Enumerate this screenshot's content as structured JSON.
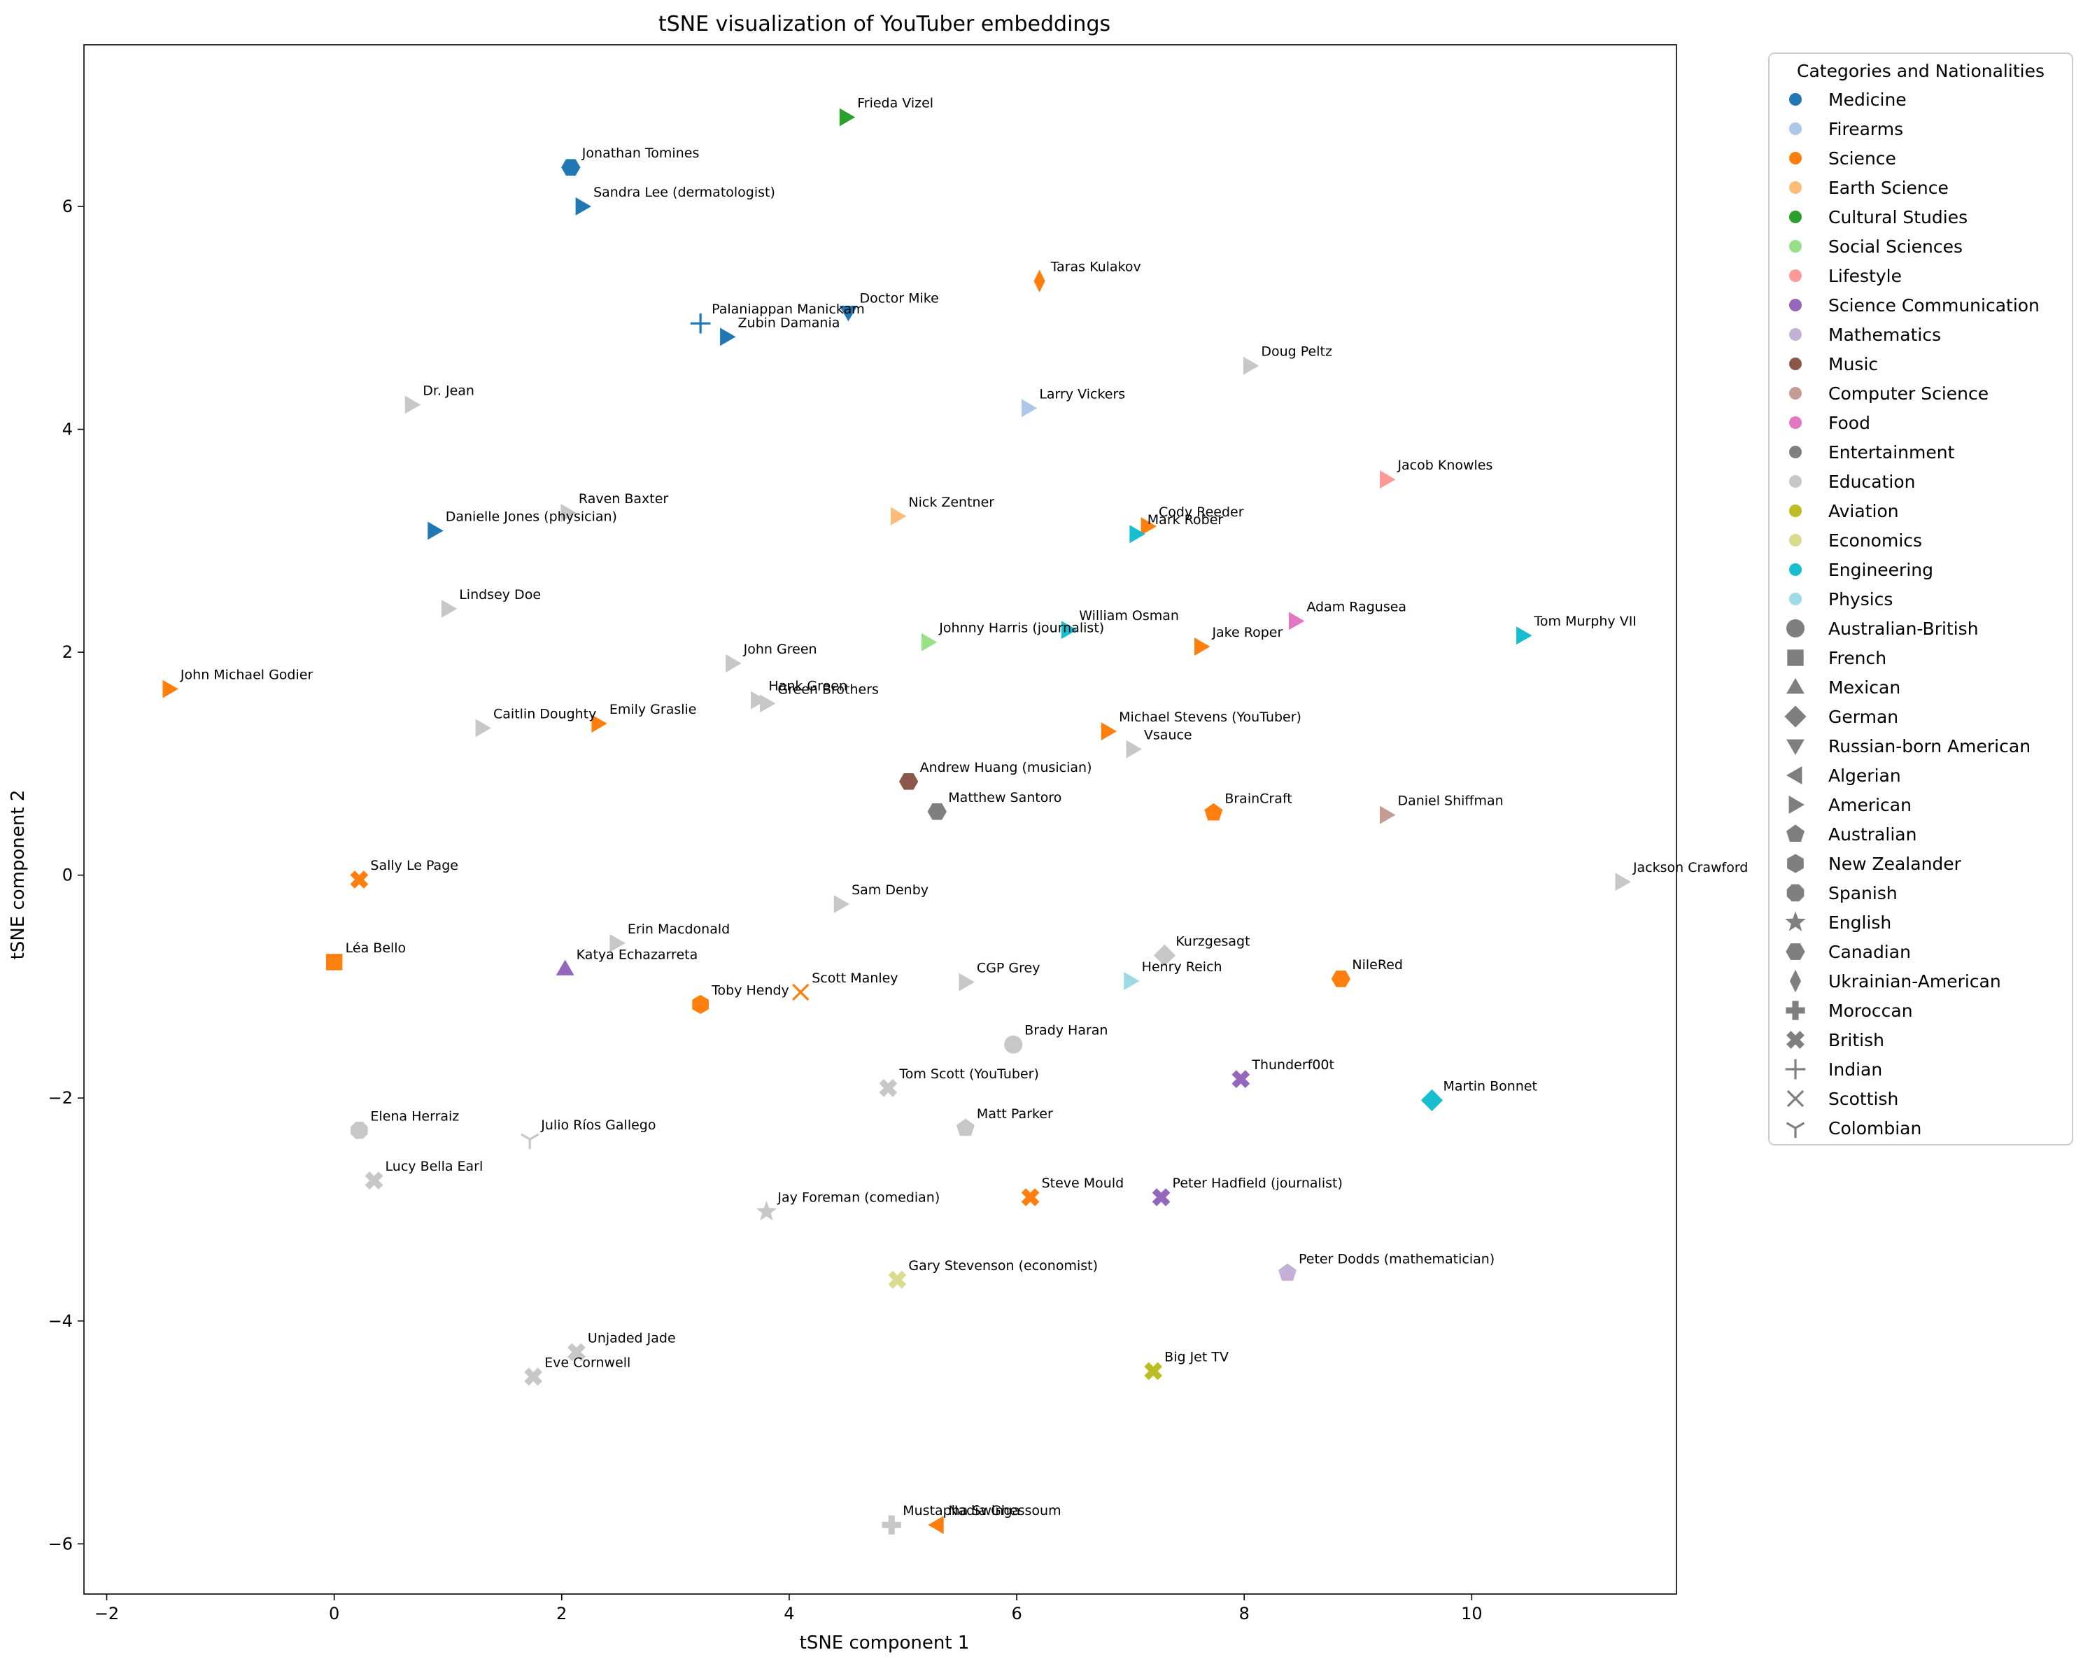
{
  "chart_data": {
    "type": "scatter",
    "title": "tSNE visualization of YouTuber embeddings",
    "xlabel": "tSNE component 1",
    "ylabel": "tSNE component 2",
    "xlim": [
      -2.2,
      11.8
    ],
    "ylim": [
      -6.45,
      7.45
    ],
    "xticks": [
      -2,
      0,
      2,
      4,
      6,
      8,
      10
    ],
    "yticks": [
      -6,
      -4,
      -2,
      0,
      2,
      4,
      6
    ],
    "xtick_labels": [
      "−2",
      "0",
      "2",
      "4",
      "6",
      "8",
      "10"
    ],
    "ytick_labels": [
      "−6",
      "−4",
      "−2",
      "0",
      "2",
      "4",
      "6"
    ],
    "grid": false,
    "legend_position": "outside-right",
    "legend_title": "Categories and Nationalities",
    "categories": [
      {
        "name": "Medicine",
        "color": "#1f77b4"
      },
      {
        "name": "Firearms",
        "color": "#aec7e8"
      },
      {
        "name": "Science",
        "color": "#ff7f0e"
      },
      {
        "name": "Earth Science",
        "color": "#ffbb78"
      },
      {
        "name": "Cultural Studies",
        "color": "#2ca02c"
      },
      {
        "name": "Social Sciences",
        "color": "#98df8a"
      },
      {
        "name": "Lifestyle",
        "color": "#ff9896"
      },
      {
        "name": "Science Communication",
        "color": "#9467bd"
      },
      {
        "name": "Mathematics",
        "color": "#c5b0d5"
      },
      {
        "name": "Music",
        "color": "#8c564b"
      },
      {
        "name": "Computer Science",
        "color": "#c49c94"
      },
      {
        "name": "Food",
        "color": "#e377c2"
      },
      {
        "name": "Entertainment",
        "color": "#7f7f7f"
      },
      {
        "name": "Education",
        "color": "#c7c7c7"
      },
      {
        "name": "Aviation",
        "color": "#bcbd22"
      },
      {
        "name": "Economics",
        "color": "#dbdb8d"
      },
      {
        "name": "Engineering",
        "color": "#17becf"
      },
      {
        "name": "Physics",
        "color": "#9edae5"
      }
    ],
    "nationalities": [
      {
        "name": "Australian-British",
        "marker": "circle"
      },
      {
        "name": "French",
        "marker": "square"
      },
      {
        "name": "Mexican",
        "marker": "triangle-up"
      },
      {
        "name": "German",
        "marker": "diamond"
      },
      {
        "name": "Russian-born American",
        "marker": "triangle-down"
      },
      {
        "name": "Algerian",
        "marker": "triangle-left"
      },
      {
        "name": "American",
        "marker": "triangle-right"
      },
      {
        "name": "Australian",
        "marker": "pentagon"
      },
      {
        "name": "New Zealander",
        "marker": "hexagon"
      },
      {
        "name": "Spanish",
        "marker": "octagon"
      },
      {
        "name": "English",
        "marker": "star"
      },
      {
        "name": "Canadian",
        "marker": "hexagon2"
      },
      {
        "name": "Ukrainian-American",
        "marker": "thin-diamond"
      },
      {
        "name": "Moroccan",
        "marker": "plus-filled"
      },
      {
        "name": "British",
        "marker": "x-filled"
      },
      {
        "name": "Indian",
        "marker": "plus"
      },
      {
        "name": "Scottish",
        "marker": "x"
      },
      {
        "name": "Colombian",
        "marker": "tri-down"
      }
    ],
    "points": [
      {
        "label": "Frieda Vizel",
        "x": 4.5,
        "y": 6.8,
        "category": "Cultural Studies",
        "nationality": "American"
      },
      {
        "label": "Jonathan Tomines",
        "x": 2.08,
        "y": 6.35,
        "category": "Medicine",
        "nationality": "Canadian"
      },
      {
        "label": "Sandra Lee (dermatologist)",
        "x": 2.18,
        "y": 6.0,
        "category": "Medicine",
        "nationality": "American"
      },
      {
        "label": "Taras Kulakov",
        "x": 6.2,
        "y": 5.33,
        "category": "Science",
        "nationality": "Ukrainian-American"
      },
      {
        "label": "Doctor Mike",
        "x": 4.52,
        "y": 5.05,
        "category": "Medicine",
        "nationality": "Russian-born American"
      },
      {
        "label": "Palaniappan Manickam",
        "x": 3.22,
        "y": 4.95,
        "category": "Medicine",
        "nationality": "Indian"
      },
      {
        "label": "Zubin Damania",
        "x": 3.45,
        "y": 4.83,
        "category": "Medicine",
        "nationality": "American"
      },
      {
        "label": "Doug Peltz",
        "x": 8.05,
        "y": 4.57,
        "category": "Education",
        "nationality": "American"
      },
      {
        "label": "Dr. Jean",
        "x": 0.68,
        "y": 4.22,
        "category": "Education",
        "nationality": "American"
      },
      {
        "label": "Larry Vickers",
        "x": 6.1,
        "y": 4.19,
        "category": "Firearms",
        "nationality": "American"
      },
      {
        "label": "Jacob Knowles",
        "x": 9.25,
        "y": 3.55,
        "category": "Lifestyle",
        "nationality": "American"
      },
      {
        "label": "Raven Baxter",
        "x": 2.05,
        "y": 3.25,
        "category": "Education",
        "nationality": "American"
      },
      {
        "label": "Nick Zentner",
        "x": 4.95,
        "y": 3.22,
        "category": "Earth Science",
        "nationality": "American"
      },
      {
        "label": "Cody Reeder",
        "x": 7.15,
        "y": 3.13,
        "category": "Science",
        "nationality": "American"
      },
      {
        "label": "Danielle Jones (physician)",
        "x": 0.88,
        "y": 3.09,
        "category": "Medicine",
        "nationality": "American"
      },
      {
        "label": "Mark Rober",
        "x": 7.05,
        "y": 3.06,
        "category": "Engineering",
        "nationality": "American"
      },
      {
        "label": "Lindsey Doe",
        "x": 1.0,
        "y": 2.39,
        "category": "Education",
        "nationality": "American"
      },
      {
        "label": "Adam Ragusea",
        "x": 8.45,
        "y": 2.28,
        "category": "Food",
        "nationality": "American"
      },
      {
        "label": "William Osman",
        "x": 6.45,
        "y": 2.2,
        "category": "Engineering",
        "nationality": "American"
      },
      {
        "label": "Tom Murphy VII",
        "x": 10.45,
        "y": 2.15,
        "category": "Engineering",
        "nationality": "American"
      },
      {
        "label": "Johnny Harris (journalist)",
        "x": 5.22,
        "y": 2.09,
        "category": "Social Sciences",
        "nationality": "American"
      },
      {
        "label": "Jake Roper",
        "x": 7.62,
        "y": 2.05,
        "category": "Science",
        "nationality": "American"
      },
      {
        "label": "John Green",
        "x": 3.5,
        "y": 1.9,
        "category": "Education",
        "nationality": "American"
      },
      {
        "label": "John Michael Godier",
        "x": -1.45,
        "y": 1.67,
        "category": "Science",
        "nationality": "American"
      },
      {
        "label": "Hank Green",
        "x": 3.72,
        "y": 1.57,
        "category": "Education",
        "nationality": "American"
      },
      {
        "label": "Green Brothers",
        "x": 3.8,
        "y": 1.54,
        "category": "Education",
        "nationality": "American"
      },
      {
        "label": "Emily Graslie",
        "x": 2.32,
        "y": 1.36,
        "category": "Science",
        "nationality": "American"
      },
      {
        "label": "Caitlin Doughty",
        "x": 1.3,
        "y": 1.32,
        "category": "Education",
        "nationality": "American"
      },
      {
        "label": "Michael Stevens (YouTuber)",
        "x": 6.8,
        "y": 1.29,
        "category": "Science",
        "nationality": "American"
      },
      {
        "label": "Vsauce",
        "x": 7.02,
        "y": 1.13,
        "category": "Education",
        "nationality": "American"
      },
      {
        "label": "Andrew Huang (musician)",
        "x": 5.05,
        "y": 0.84,
        "category": "Music",
        "nationality": "Canadian"
      },
      {
        "label": "Matthew Santoro",
        "x": 5.3,
        "y": 0.57,
        "category": "Entertainment",
        "nationality": "Canadian"
      },
      {
        "label": "BrainCraft",
        "x": 7.73,
        "y": 0.56,
        "category": "Science",
        "nationality": "Australian"
      },
      {
        "label": "Daniel Shiffman",
        "x": 9.25,
        "y": 0.54,
        "category": "Computer Science",
        "nationality": "American"
      },
      {
        "label": "Sally Le Page",
        "x": 0.22,
        "y": -0.04,
        "category": "Science",
        "nationality": "British"
      },
      {
        "label": "Jackson Crawford",
        "x": 11.32,
        "y": -0.06,
        "category": "Education",
        "nationality": "American"
      },
      {
        "label": "Sam Denby",
        "x": 4.45,
        "y": -0.26,
        "category": "Education",
        "nationality": "American"
      },
      {
        "label": "Erin Macdonald",
        "x": 2.48,
        "y": -0.61,
        "category": "Education",
        "nationality": "American"
      },
      {
        "label": "Kurzgesagt",
        "x": 7.3,
        "y": -0.72,
        "category": "Education",
        "nationality": "German"
      },
      {
        "label": "Léa Bello",
        "x": 0.0,
        "y": -0.78,
        "category": "Science",
        "nationality": "French"
      },
      {
        "label": "Katya Echazarreta",
        "x": 2.03,
        "y": -0.84,
        "category": "Science Communication",
        "nationality": "Mexican"
      },
      {
        "label": "NileRed",
        "x": 8.85,
        "y": -0.93,
        "category": "Science",
        "nationality": "Canadian"
      },
      {
        "label": "Henry Reich",
        "x": 7.0,
        "y": -0.95,
        "category": "Physics",
        "nationality": "American"
      },
      {
        "label": "CGP Grey",
        "x": 5.55,
        "y": -0.96,
        "category": "Education",
        "nationality": "American"
      },
      {
        "label": "Scott Manley",
        "x": 4.1,
        "y": -1.05,
        "category": "Science",
        "nationality": "Scottish"
      },
      {
        "label": "Toby Hendy",
        "x": 3.22,
        "y": -1.16,
        "category": "Science",
        "nationality": "New Zealander"
      },
      {
        "label": "Brady Haran",
        "x": 5.97,
        "y": -1.52,
        "category": "Education",
        "nationality": "Australian-British"
      },
      {
        "label": "Thunderf00t",
        "x": 7.97,
        "y": -1.83,
        "category": "Science Communication",
        "nationality": "British"
      },
      {
        "label": "Tom Scott (YouTuber)",
        "x": 4.87,
        "y": -1.91,
        "category": "Education",
        "nationality": "British"
      },
      {
        "label": "Martin Bonnet",
        "x": 9.65,
        "y": -2.02,
        "category": "Engineering",
        "nationality": "German"
      },
      {
        "label": "Matt Parker",
        "x": 5.55,
        "y": -2.27,
        "category": "Education",
        "nationality": "Australian"
      },
      {
        "label": "Elena Herraiz",
        "x": 0.22,
        "y": -2.29,
        "category": "Education",
        "nationality": "Spanish"
      },
      {
        "label": "Julio Ríos Gallego",
        "x": 1.72,
        "y": -2.37,
        "category": "Education",
        "nationality": "Colombian"
      },
      {
        "label": "Lucy Bella Earl",
        "x": 0.35,
        "y": -2.74,
        "category": "Education",
        "nationality": "British"
      },
      {
        "label": "Steve Mould",
        "x": 6.12,
        "y": -2.89,
        "category": "Science",
        "nationality": "British"
      },
      {
        "label": "Peter Hadfield (journalist)",
        "x": 7.27,
        "y": -2.89,
        "category": "Science Communication",
        "nationality": "British"
      },
      {
        "label": "Jay Foreman (comedian)",
        "x": 3.8,
        "y": -3.02,
        "category": "Education",
        "nationality": "English"
      },
      {
        "label": "Peter Dodds (mathematician)",
        "x": 8.38,
        "y": -3.57,
        "category": "Mathematics",
        "nationality": "Australian"
      },
      {
        "label": "Gary Stevenson (economist)",
        "x": 4.95,
        "y": -3.63,
        "category": "Economics",
        "nationality": "British"
      },
      {
        "label": "Unjaded Jade",
        "x": 2.13,
        "y": -4.28,
        "category": "Education",
        "nationality": "British"
      },
      {
        "label": "Big Jet TV",
        "x": 7.2,
        "y": -4.45,
        "category": "Aviation",
        "nationality": "British"
      },
      {
        "label": "Eve Cornwell",
        "x": 1.75,
        "y": -4.5,
        "category": "Education",
        "nationality": "British"
      },
      {
        "label": "Mustapha Swinga",
        "x": 4.9,
        "y": -5.83,
        "category": "Education",
        "nationality": "Moroccan"
      },
      {
        "label": "Nadia Ghessoum",
        "x": 5.3,
        "y": -5.83,
        "category": "Science",
        "nationality": "Algerian"
      }
    ]
  }
}
